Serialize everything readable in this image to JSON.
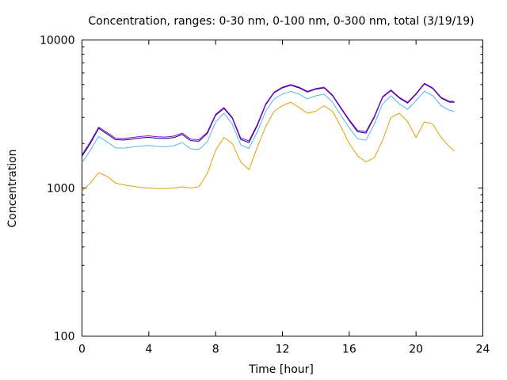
{
  "chart_data": {
    "type": "line",
    "title": "Concentration, ranges: 0-30 nm, 0-100 nm, 0-300 nm, total (3/19/19)",
    "xlabel": "Time [hour]",
    "ylabel": "Concentration",
    "xlim": [
      0,
      24
    ],
    "ylim": [
      100,
      10000
    ],
    "yscale": "log",
    "xticks": [
      0,
      4,
      8,
      12,
      16,
      20,
      24
    ],
    "yticks": [
      100,
      1000,
      10000
    ],
    "grid": false,
    "legend": "none",
    "x": [
      0,
      0.5,
      1,
      1.5,
      2,
      2.5,
      3,
      3.5,
      4,
      4.5,
      5,
      5.5,
      6,
      6.5,
      7,
      7.5,
      8,
      8.5,
      9,
      9.5,
      10,
      10.5,
      11,
      11.5,
      12,
      12.5,
      13,
      13.5,
      14,
      14.5,
      15,
      15.5,
      16,
      16.5,
      17,
      17.5,
      18,
      18.5,
      19,
      19.5,
      20,
      20.5,
      21,
      21.5,
      22,
      22.3
    ],
    "series": [
      {
        "name": "0-30 nm",
        "color": "#e69f00",
        "values": [
          950,
          1080,
          1270,
          1200,
          1080,
          1050,
          1030,
          1010,
          1000,
          990,
          990,
          1000,
          1020,
          1000,
          1020,
          1250,
          1800,
          2200,
          2000,
          1500,
          1330,
          1900,
          2600,
          3300,
          3600,
          3800,
          3500,
          3200,
          3300,
          3600,
          3300,
          2600,
          2000,
          1650,
          1500,
          1600,
          2100,
          3000,
          3200,
          2800,
          2200,
          2800,
          2700,
          2200,
          1900,
          1780
        ]
      },
      {
        "name": "0-100 nm",
        "color": "#56b4e9",
        "values": [
          1480,
          1800,
          2230,
          2050,
          1870,
          1860,
          1890,
          1920,
          1940,
          1910,
          1900,
          1930,
          2030,
          1840,
          1820,
          2050,
          2800,
          3200,
          2700,
          1960,
          1850,
          2400,
          3300,
          4000,
          4300,
          4500,
          4300,
          4000,
          4200,
          4300,
          3800,
          3100,
          2550,
          2150,
          2100,
          2700,
          3700,
          4200,
          3700,
          3400,
          3900,
          4500,
          4200,
          3600,
          3350,
          3300
        ]
      },
      {
        "name": "0-300 nm",
        "color": "#000080",
        "values": [
          1640,
          2000,
          2530,
          2320,
          2120,
          2110,
          2140,
          2180,
          2200,
          2170,
          2160,
          2190,
          2300,
          2090,
          2070,
          2330,
          3100,
          3450,
          2950,
          2130,
          2030,
          2650,
          3650,
          4400,
          4750,
          4950,
          4750,
          4450,
          4650,
          4750,
          4200,
          3450,
          2850,
          2400,
          2350,
          3000,
          4100,
          4550,
          4050,
          3750,
          4300,
          5050,
          4700,
          4050,
          3800,
          3800
        ]
      },
      {
        "name": "total",
        "color": "#9400d3",
        "values": [
          1680,
          2050,
          2580,
          2370,
          2170,
          2160,
          2190,
          2230,
          2250,
          2220,
          2210,
          2240,
          2350,
          2140,
          2120,
          2380,
          3150,
          3500,
          3000,
          2180,
          2080,
          2700,
          3700,
          4450,
          4800,
          5000,
          4800,
          4500,
          4700,
          4800,
          4250,
          3500,
          2900,
          2450,
          2400,
          3050,
          4150,
          4600,
          4100,
          3800,
          4350,
          5100,
          4750,
          4100,
          3850,
          3850
        ]
      }
    ]
  }
}
